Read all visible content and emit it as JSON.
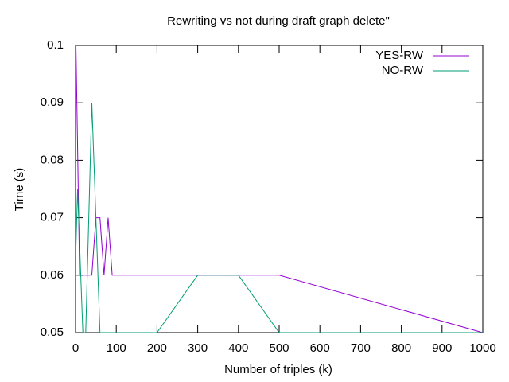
{
  "chart_data": {
    "type": "line",
    "title": "Rewriting vs not during draft graph delete\"",
    "x_label": "Number of triples (k)",
    "y_label": "Time (s)",
    "xlim": [
      0,
      1000
    ],
    "ylim": [
      0.05,
      0.1
    ],
    "xticks": [
      0,
      100,
      200,
      300,
      400,
      500,
      600,
      700,
      800,
      900,
      1000
    ],
    "yticks": [
      0.05,
      0.06,
      0.07,
      0.08,
      0.09,
      0.1
    ],
    "legend": "top-right",
    "series": [
      {
        "name": "YES-RW",
        "color": "#9400d3",
        "x": [
          1,
          10,
          40,
          50,
          60,
          70,
          80,
          90,
          500,
          1000
        ],
        "values": [
          0.1,
          0.06,
          0.06,
          0.07,
          0.07,
          0.06,
          0.07,
          0.06,
          0.06,
          0.05
        ]
      },
      {
        "name": "NO-RW",
        "color": "#009e73",
        "x": [
          1,
          5,
          18,
          25,
          40,
          60,
          100,
          200,
          300,
          400,
          500,
          1000
        ],
        "values": [
          0.065,
          0.075,
          0.05,
          0.05,
          0.09,
          0.05,
          0.05,
          0.05,
          0.06,
          0.06,
          0.05,
          0.05
        ]
      }
    ]
  }
}
